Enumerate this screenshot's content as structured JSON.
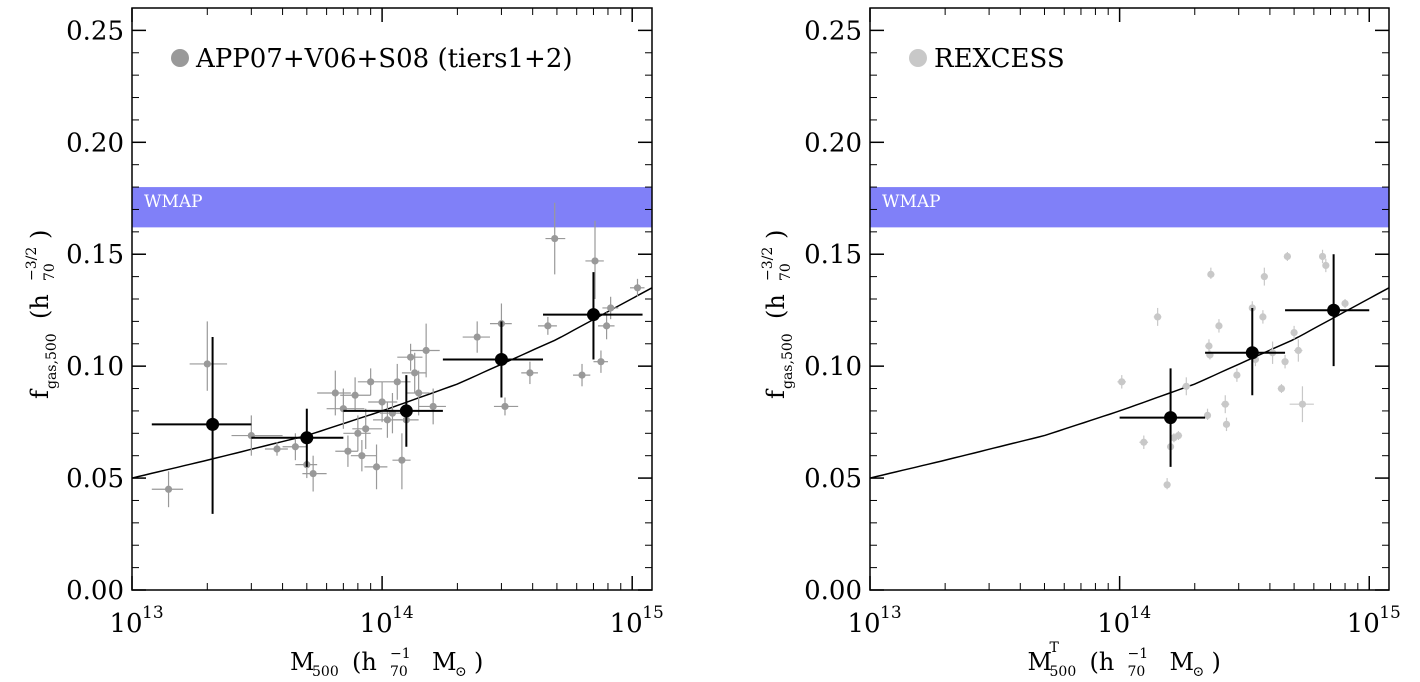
{
  "chart_data": [
    {
      "type": "scatter",
      "legend": {
        "label": "APP07+V06+S08 (tiers1+2)",
        "position": "top-left",
        "marker_color": "#999999"
      },
      "band": {
        "label": "WMAP",
        "y_range": [
          0.162,
          0.18
        ],
        "color": "#8080f8"
      },
      "xlim": [
        10000000000000.0,
        1200000000000000.0
      ],
      "ylim": [
        0.0,
        0.26
      ],
      "xscale": "log",
      "yticks": [
        "0.00",
        "0.05",
        "0.10",
        "0.15",
        "0.20",
        "0.25"
      ],
      "xticks": [
        {
          "base": "10",
          "exp": "13"
        },
        {
          "base": "10",
          "exp": "14"
        },
        {
          "base": "10",
          "exp": "15"
        }
      ],
      "xlabel": {
        "main": "M",
        "sub": "500",
        "paren_open": "(h",
        "h_sub": "70",
        "h_sup": "−1",
        "unit": "M",
        "unit_sub": "⊙",
        "paren_close": ")"
      },
      "ylabel": {
        "main": "f",
        "sub": "gas,500",
        "paren_open": "(h",
        "h_sub": "70",
        "h_sup": "−3/2",
        "paren_close": ")"
      },
      "fit_curve": {
        "color": "#000000",
        "x": [
          10000000000000.0,
          20000000000000.0,
          50000000000000.0,
          100000000000000.0,
          200000000000000.0,
          500000000000000.0,
          1200000000000000.0
        ],
        "y": [
          0.05,
          0.058,
          0.069,
          0.08,
          0.092,
          0.112,
          0.135
        ]
      },
      "points": [
        {
          "x": 14000000000000.0,
          "y": 0.045,
          "xlo": 12000000000000.0,
          "xhi": 16000000000000.0,
          "ylo": 0.037,
          "yhi": 0.053
        },
        {
          "x": 20000000000000.0,
          "y": 0.101,
          "xlo": 17000000000000.0,
          "xhi": 24000000000000.0,
          "ylo": 0.089,
          "yhi": 0.12
        },
        {
          "x": 30000000000000.0,
          "y": 0.069,
          "xlo": 25000000000000.0,
          "xhi": 40000000000000.0,
          "ylo": 0.06,
          "yhi": 0.078
        },
        {
          "x": 38000000000000.0,
          "y": 0.063,
          "xlo": 34000000000000.0,
          "xhi": 42000000000000.0,
          "ylo": 0.06,
          "yhi": 0.066
        },
        {
          "x": 45000000000000.0,
          "y": 0.064,
          "xlo": 40000000000000.0,
          "xhi": 50000000000000.0,
          "ylo": 0.058,
          "yhi": 0.07
        },
        {
          "x": 50000000000000.0,
          "y": 0.056,
          "xlo": 45000000000000.0,
          "xhi": 55000000000000.0,
          "ylo": 0.05,
          "yhi": 0.062
        },
        {
          "x": 53000000000000.0,
          "y": 0.052,
          "xlo": 48000000000000.0,
          "xhi": 60000000000000.0,
          "ylo": 0.044,
          "yhi": 0.06
        },
        {
          "x": 65000000000000.0,
          "y": 0.088,
          "xlo": 55000000000000.0,
          "xhi": 75000000000000.0,
          "ylo": 0.078,
          "yhi": 0.098
        },
        {
          "x": 70000000000000.0,
          "y": 0.081,
          "xlo": 60000000000000.0,
          "xhi": 85000000000000.0,
          "ylo": 0.072,
          "yhi": 0.09
        },
        {
          "x": 73000000000000.0,
          "y": 0.062,
          "xlo": 65000000000000.0,
          "xhi": 80000000000000.0,
          "ylo": 0.055,
          "yhi": 0.069
        },
        {
          "x": 78000000000000.0,
          "y": 0.087,
          "xlo": 68000000000000.0,
          "xhi": 90000000000000.0,
          "ylo": 0.08,
          "yhi": 0.095
        },
        {
          "x": 80000000000000.0,
          "y": 0.07,
          "xlo": 70000000000000.0,
          "xhi": 90000000000000.0,
          "ylo": 0.062,
          "yhi": 0.078
        },
        {
          "x": 83000000000000.0,
          "y": 0.06,
          "xlo": 75000000000000.0,
          "xhi": 95000000000000.0,
          "ylo": 0.053,
          "yhi": 0.067
        },
        {
          "x": 86000000000000.0,
          "y": 0.072,
          "xlo": 76000000000000.0,
          "xhi": 100000000000000.0,
          "ylo": 0.063,
          "yhi": 0.081
        },
        {
          "x": 90000000000000.0,
          "y": 0.093,
          "xlo": 80000000000000.0,
          "xhi": 100000000000000.0,
          "ylo": 0.087,
          "yhi": 0.099
        },
        {
          "x": 95000000000000.0,
          "y": 0.055,
          "xlo": 85000000000000.0,
          "xhi": 105000000000000.0,
          "ylo": 0.045,
          "yhi": 0.065
        },
        {
          "x": 100000000000000.0,
          "y": 0.084,
          "xlo": 88000000000000.0,
          "xhi": 115000000000000.0,
          "ylo": 0.075,
          "yhi": 0.093
        },
        {
          "x": 105000000000000.0,
          "y": 0.076,
          "xlo": 92000000000000.0,
          "xhi": 120000000000000.0,
          "ylo": 0.068,
          "yhi": 0.084
        },
        {
          "x": 110000000000000.0,
          "y": 0.079,
          "xlo": 98000000000000.0,
          "xhi": 125000000000000.0,
          "ylo": 0.07,
          "yhi": 0.088
        },
        {
          "x": 115000000000000.0,
          "y": 0.093,
          "xlo": 100000000000000.0,
          "xhi": 130000000000000.0,
          "ylo": 0.085,
          "yhi": 0.101
        },
        {
          "x": 120000000000000.0,
          "y": 0.058,
          "xlo": 110000000000000.0,
          "xhi": 130000000000000.0,
          "ylo": 0.045,
          "yhi": 0.07
        },
        {
          "x": 125000000000000.0,
          "y": 0.076,
          "xlo": 110000000000000.0,
          "xhi": 140000000000000.0,
          "ylo": 0.068,
          "yhi": 0.084
        },
        {
          "x": 130000000000000.0,
          "y": 0.104,
          "xlo": 115000000000000.0,
          "xhi": 145000000000000.0,
          "ylo": 0.098,
          "yhi": 0.11
        },
        {
          "x": 135000000000000.0,
          "y": 0.097,
          "xlo": 120000000000000.0,
          "xhi": 150000000000000.0,
          "ylo": 0.088,
          "yhi": 0.106
        },
        {
          "x": 140000000000000.0,
          "y": 0.088,
          "xlo": 125000000000000.0,
          "xhi": 155000000000000.0,
          "ylo": 0.078,
          "yhi": 0.098
        },
        {
          "x": 150000000000000.0,
          "y": 0.107,
          "xlo": 130000000000000.0,
          "xhi": 170000000000000.0,
          "ylo": 0.095,
          "yhi": 0.119
        },
        {
          "x": 160000000000000.0,
          "y": 0.082,
          "xlo": 140000000000000.0,
          "xhi": 180000000000000.0,
          "ylo": 0.074,
          "yhi": 0.09
        },
        {
          "x": 240000000000000.0,
          "y": 0.113,
          "xlo": 210000000000000.0,
          "xhi": 270000000000000.0,
          "ylo": 0.106,
          "yhi": 0.12
        },
        {
          "x": 300000000000000.0,
          "y": 0.119,
          "xlo": 270000000000000.0,
          "xhi": 330000000000000.0,
          "ylo": 0.11,
          "yhi": 0.128
        },
        {
          "x": 310000000000000.0,
          "y": 0.082,
          "xlo": 280000000000000.0,
          "xhi": 350000000000000.0,
          "ylo": 0.078,
          "yhi": 0.086
        },
        {
          "x": 390000000000000.0,
          "y": 0.097,
          "xlo": 360000000000000.0,
          "xhi": 420000000000000.0,
          "ylo": 0.092,
          "yhi": 0.102
        },
        {
          "x": 460000000000000.0,
          "y": 0.118,
          "xlo": 420000000000000.0,
          "xhi": 500000000000000.0,
          "ylo": 0.114,
          "yhi": 0.122
        },
        {
          "x": 490000000000000.0,
          "y": 0.157,
          "xlo": 450000000000000.0,
          "xhi": 540000000000000.0,
          "ylo": 0.141,
          "yhi": 0.173
        },
        {
          "x": 630000000000000.0,
          "y": 0.096,
          "xlo": 580000000000000.0,
          "xhi": 680000000000000.0,
          "ylo": 0.091,
          "yhi": 0.101
        },
        {
          "x": 710000000000000.0,
          "y": 0.147,
          "xlo": 650000000000000.0,
          "xhi": 770000000000000.0,
          "ylo": 0.13,
          "yhi": 0.165
        },
        {
          "x": 750000000000000.0,
          "y": 0.102,
          "xlo": 700000000000000.0,
          "xhi": 800000000000000.0,
          "ylo": 0.097,
          "yhi": 0.107
        },
        {
          "x": 790000000000000.0,
          "y": 0.118,
          "xlo": 730000000000000.0,
          "xhi": 850000000000000.0,
          "ylo": 0.112,
          "yhi": 0.124
        },
        {
          "x": 820000000000000.0,
          "y": 0.126,
          "xlo": 760000000000000.0,
          "xhi": 880000000000000.0,
          "ylo": 0.121,
          "yhi": 0.131
        },
        {
          "x": 1050000000000000.0,
          "y": 0.135,
          "xlo": 980000000000000.0,
          "xhi": 1120000000000000.0,
          "ylo": 0.131,
          "yhi": 0.139
        }
      ],
      "binned": [
        {
          "x": 21000000000000.0,
          "y": 0.074,
          "xlo": 12000000000000.0,
          "xhi": 30000000000000.0,
          "ylo": 0.034,
          "yhi": 0.113
        },
        {
          "x": 50000000000000.0,
          "y": 0.068,
          "xlo": 30000000000000.0,
          "xhi": 70000000000000.0,
          "ylo": 0.055,
          "yhi": 0.081
        },
        {
          "x": 125000000000000.0,
          "y": 0.08,
          "xlo": 70000000000000.0,
          "xhi": 175000000000000.0,
          "ylo": 0.064,
          "yhi": 0.096
        },
        {
          "x": 300000000000000.0,
          "y": 0.103,
          "xlo": 175000000000000.0,
          "xhi": 440000000000000.0,
          "ylo": 0.086,
          "yhi": 0.12
        },
        {
          "x": 700000000000000.0,
          "y": 0.123,
          "xlo": 440000000000000.0,
          "xhi": 1100000000000000.0,
          "ylo": 0.103,
          "yhi": 0.142
        }
      ]
    },
    {
      "type": "scatter",
      "legend": {
        "label": "REXCESS",
        "position": "top-left",
        "marker_color": "#c8c8c8"
      },
      "band": {
        "label": "WMAP",
        "y_range": [
          0.162,
          0.18
        ],
        "color": "#8080f8"
      },
      "xlim": [
        10000000000000.0,
        1200000000000000.0
      ],
      "ylim": [
        0.0,
        0.26
      ],
      "xscale": "log",
      "yticks": [
        "0.00",
        "0.05",
        "0.10",
        "0.15",
        "0.20",
        "0.25"
      ],
      "xticks": [
        {
          "base": "10",
          "exp": "13"
        },
        {
          "base": "10",
          "exp": "14"
        },
        {
          "base": "10",
          "exp": "15"
        }
      ],
      "xlabel": {
        "main": "M",
        "sub": "500",
        "sup": "T",
        "paren_open": "(h",
        "h_sub": "70",
        "h_sup": "−1",
        "unit": "M",
        "unit_sub": "⊙",
        "paren_close": ")"
      },
      "ylabel": {
        "main": "f",
        "sub": "gas,500",
        "paren_open": "(h",
        "h_sub": "70",
        "h_sup": "−3/2",
        "paren_close": ")"
      },
      "fit_curve": {
        "color": "#000000",
        "x": [
          10000000000000.0,
          20000000000000.0,
          50000000000000.0,
          100000000000000.0,
          200000000000000.0,
          500000000000000.0,
          1200000000000000.0
        ],
        "y": [
          0.05,
          0.058,
          0.069,
          0.08,
          0.092,
          0.112,
          0.135
        ]
      },
      "points": [
        {
          "x": 102000000000000.0,
          "y": 0.093,
          "xlo": 98000000000000.0,
          "xhi": 106000000000000.0,
          "ylo": 0.09,
          "yhi": 0.096
        },
        {
          "x": 125000000000000.0,
          "y": 0.066,
          "xlo": 120000000000000.0,
          "xhi": 130000000000000.0,
          "ylo": 0.063,
          "yhi": 0.069
        },
        {
          "x": 142000000000000.0,
          "y": 0.122,
          "xlo": 137000000000000.0,
          "xhi": 147000000000000.0,
          "ylo": 0.118,
          "yhi": 0.126
        },
        {
          "x": 155000000000000.0,
          "y": 0.047,
          "xlo": 150000000000000.0,
          "xhi": 160000000000000.0,
          "ylo": 0.045,
          "yhi": 0.05
        },
        {
          "x": 160000000000000.0,
          "y": 0.064,
          "xlo": 155000000000000.0,
          "xhi": 165000000000000.0,
          "ylo": 0.062,
          "yhi": 0.066
        },
        {
          "x": 165000000000000.0,
          "y": 0.068,
          "xlo": 160000000000000.0,
          "xhi": 170000000000000.0,
          "ylo": 0.066,
          "yhi": 0.07
        },
        {
          "x": 172000000000000.0,
          "y": 0.069,
          "xlo": 165000000000000.0,
          "xhi": 178000000000000.0,
          "ylo": 0.067,
          "yhi": 0.071
        },
        {
          "x": 185000000000000.0,
          "y": 0.091,
          "xlo": 178000000000000.0,
          "xhi": 192000000000000.0,
          "ylo": 0.087,
          "yhi": 0.095
        },
        {
          "x": 225000000000000.0,
          "y": 0.078,
          "xlo": 218000000000000.0,
          "xhi": 232000000000000.0,
          "ylo": 0.076,
          "yhi": 0.081
        },
        {
          "x": 228000000000000.0,
          "y": 0.109,
          "xlo": 220000000000000.0,
          "xhi": 235000000000000.0,
          "ylo": 0.106,
          "yhi": 0.112
        },
        {
          "x": 230000000000000.0,
          "y": 0.105,
          "xlo": 222000000000000.0,
          "xhi": 238000000000000.0,
          "ylo": 0.103,
          "yhi": 0.107
        },
        {
          "x": 232000000000000.0,
          "y": 0.141,
          "xlo": 225000000000000.0,
          "xhi": 240000000000000.0,
          "ylo": 0.139,
          "yhi": 0.144
        },
        {
          "x": 250000000000000.0,
          "y": 0.118,
          "xlo": 242000000000000.0,
          "xhi": 258000000000000.0,
          "ylo": 0.115,
          "yhi": 0.121
        },
        {
          "x": 265000000000000.0,
          "y": 0.083,
          "xlo": 255000000000000.0,
          "xhi": 275000000000000.0,
          "ylo": 0.079,
          "yhi": 0.087
        },
        {
          "x": 268000000000000.0,
          "y": 0.074,
          "xlo": 260000000000000.0,
          "xhi": 276000000000000.0,
          "ylo": 0.071,
          "yhi": 0.077
        },
        {
          "x": 295000000000000.0,
          "y": 0.096,
          "xlo": 286000000000000.0,
          "xhi": 304000000000000.0,
          "ylo": 0.093,
          "yhi": 0.099
        },
        {
          "x": 340000000000000.0,
          "y": 0.126,
          "xlo": 330000000000000.0,
          "xhi": 350000000000000.0,
          "ylo": 0.123,
          "yhi": 0.129
        },
        {
          "x": 350000000000000.0,
          "y": 0.103,
          "xlo": 340000000000000.0,
          "xhi": 360000000000000.0,
          "ylo": 0.1,
          "yhi": 0.106
        },
        {
          "x": 375000000000000.0,
          "y": 0.122,
          "xlo": 365000000000000.0,
          "xhi": 385000000000000.0,
          "ylo": 0.119,
          "yhi": 0.125
        },
        {
          "x": 380000000000000.0,
          "y": 0.14,
          "xlo": 370000000000000.0,
          "xhi": 390000000000000.0,
          "ylo": 0.136,
          "yhi": 0.144
        },
        {
          "x": 410000000000000.0,
          "y": 0.106,
          "xlo": 395000000000000.0,
          "xhi": 425000000000000.0,
          "ylo": 0.101,
          "yhi": 0.111
        },
        {
          "x": 445000000000000.0,
          "y": 0.09,
          "xlo": 430000000000000.0,
          "xhi": 460000000000000.0,
          "ylo": 0.088,
          "yhi": 0.092
        },
        {
          "x": 460000000000000.0,
          "y": 0.102,
          "xlo": 445000000000000.0,
          "xhi": 475000000000000.0,
          "ylo": 0.099,
          "yhi": 0.105
        },
        {
          "x": 470000000000000.0,
          "y": 0.149,
          "xlo": 455000000000000.0,
          "xhi": 485000000000000.0,
          "ylo": 0.147,
          "yhi": 0.151
        },
        {
          "x": 500000000000000.0,
          "y": 0.115,
          "xlo": 485000000000000.0,
          "xhi": 515000000000000.0,
          "ylo": 0.112,
          "yhi": 0.118
        },
        {
          "x": 520000000000000.0,
          "y": 0.107,
          "xlo": 500000000000000.0,
          "xhi": 540000000000000.0,
          "ylo": 0.102,
          "yhi": 0.112
        },
        {
          "x": 540000000000000.0,
          "y": 0.083,
          "xlo": 480000000000000.0,
          "xhi": 600000000000000.0,
          "ylo": 0.075,
          "yhi": 0.091
        },
        {
          "x": 650000000000000.0,
          "y": 0.149,
          "xlo": 630000000000000.0,
          "xhi": 670000000000000.0,
          "ylo": 0.146,
          "yhi": 0.152
        },
        {
          "x": 670000000000000.0,
          "y": 0.145,
          "xlo": 650000000000000.0,
          "xhi": 690000000000000.0,
          "ylo": 0.142,
          "yhi": 0.148
        },
        {
          "x": 800000000000000.0,
          "y": 0.128,
          "xlo": 780000000000000.0,
          "xhi": 820000000000000.0,
          "ylo": 0.126,
          "yhi": 0.13
        }
      ],
      "binned": [
        {
          "x": 160000000000000.0,
          "y": 0.077,
          "xlo": 100000000000000.0,
          "xhi": 220000000000000.0,
          "ylo": 0.055,
          "yhi": 0.099
        },
        {
          "x": 340000000000000.0,
          "y": 0.106,
          "xlo": 220000000000000.0,
          "xhi": 460000000000000.0,
          "ylo": 0.087,
          "yhi": 0.126
        },
        {
          "x": 720000000000000.0,
          "y": 0.125,
          "xlo": 460000000000000.0,
          "xhi": 1000000000000000.0,
          "ylo": 0.1,
          "yhi": 0.15
        }
      ]
    }
  ]
}
